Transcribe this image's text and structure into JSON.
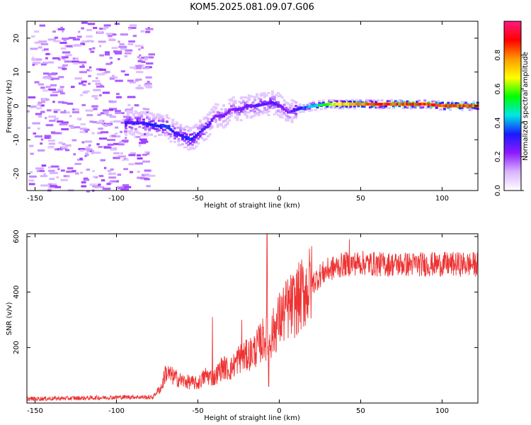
{
  "figure": {
    "title": "KOM5.2025.081.09.07.G06"
  },
  "chart_data": [
    {
      "type": "heatmap",
      "xlabel": "Height of straight line (km)",
      "ylabel": "Frequency (Hz)",
      "xlim": [
        -155,
        122
      ],
      "ylim": [
        -25,
        25
      ],
      "x_ticks": [
        -150,
        -100,
        -50,
        0,
        50,
        100
      ],
      "y_ticks": [
        -20,
        -10,
        0,
        10,
        20
      ],
      "colorbar": {
        "label": "Normalized spectral amplitude",
        "range": [
          0.0,
          1.0
        ],
        "ticks": [
          0.0,
          0.2,
          0.4,
          0.6,
          0.8
        ],
        "tick_labels": [
          "0.0",
          "0.2",
          "0.4",
          "0.6",
          "0.8"
        ],
        "colormap": [
          "#ffffff",
          "#d9b3ff",
          "#8c1aff",
          "#1a1aff",
          "#00e6e6",
          "#00ff00",
          "#ffff00",
          "#ff9900",
          "#ff0000",
          "#ff1a80"
        ]
      },
      "signal_ridge": {
        "x": [
          -85,
          -75,
          -70,
          -65,
          -60,
          -55,
          -50,
          -45,
          -40,
          -35,
          -30,
          -25,
          -20,
          -15,
          -10,
          -5,
          0,
          5,
          10,
          20,
          30,
          40,
          50,
          60,
          70,
          80,
          90,
          100,
          110,
          120
        ],
        "freq": [
          -5,
          -6,
          -6,
          -8,
          -9,
          -10,
          -8,
          -6,
          -3,
          -3,
          -1,
          -1,
          0,
          0,
          0.5,
          1,
          0,
          -2,
          -1,
          0,
          0.5,
          0.5,
          0.5,
          0.5,
          0.5,
          0.5,
          0.5,
          0,
          0,
          0
        ],
        "amplitude": [
          0.3,
          0.35,
          0.35,
          0.3,
          0.32,
          0.35,
          0.3,
          0.28,
          0.22,
          0.25,
          0.22,
          0.25,
          0.25,
          0.28,
          0.28,
          0.28,
          0.25,
          0.22,
          0.3,
          0.45,
          0.6,
          0.75,
          0.82,
          0.85,
          0.85,
          0.88,
          0.88,
          0.88,
          0.85,
          0.82
        ]
      }
    },
    {
      "type": "line",
      "xlabel": "Height of straight line (km)",
      "ylabel": "SNR (v/v)",
      "xlim": [
        -155,
        122
      ],
      "ylim": [
        0,
        610
      ],
      "x_ticks": [
        -150,
        -100,
        -50,
        0,
        50,
        100
      ],
      "y_ticks": [
        200,
        400,
        600
      ],
      "color": "#ee3333",
      "trend": {
        "x": [
          -155,
          -120,
          -90,
          -78,
          -72,
          -70,
          -60,
          -50,
          -45,
          -40,
          -35,
          -30,
          -25,
          -20,
          -15,
          -10,
          -5,
          0,
          5,
          10,
          15,
          20,
          25,
          30,
          35,
          40,
          50,
          60,
          70,
          80,
          90,
          100,
          110,
          122
        ],
        "y": [
          15,
          18,
          22,
          20,
          60,
          110,
          80,
          70,
          100,
          90,
          130,
          120,
          160,
          170,
          190,
          230,
          240,
          300,
          340,
          360,
          400,
          430,
          460,
          480,
          490,
          500,
          505,
          500,
          500,
          500,
          500,
          500,
          500,
          500
        ]
      },
      "spikes": [
        {
          "x": -7.5,
          "y": 610
        },
        {
          "x": -6.5,
          "y": 60
        },
        {
          "x": -41,
          "y": 310
        },
        {
          "x": -23,
          "y": 300
        },
        {
          "x": 43,
          "y": 590
        }
      ]
    }
  ]
}
